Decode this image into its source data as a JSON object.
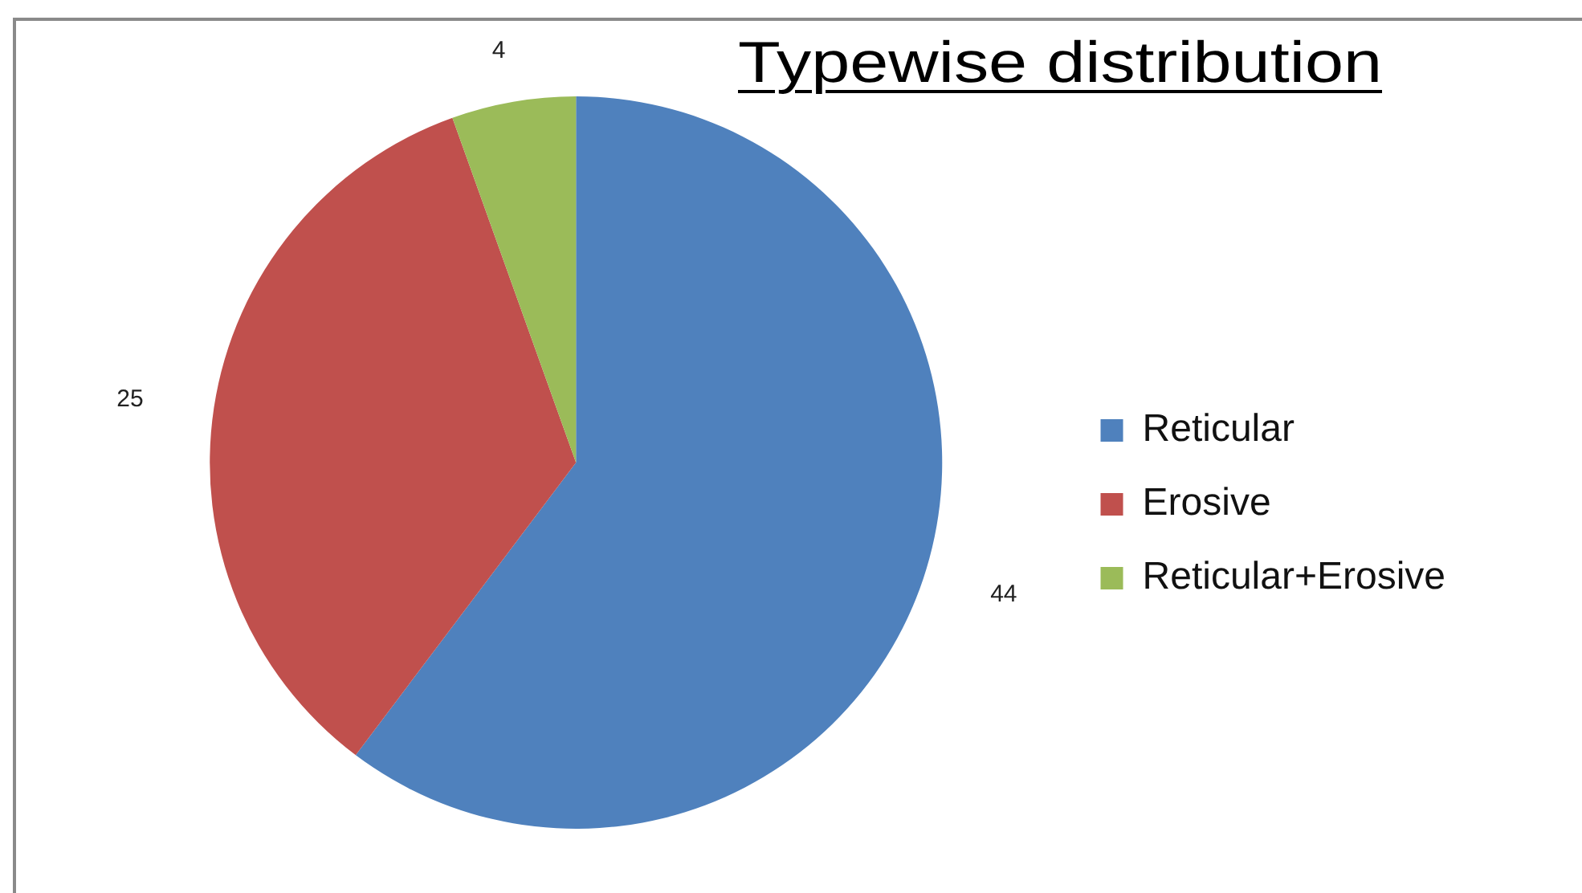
{
  "chart_data": {
    "type": "pie",
    "title": "Typewise distribution",
    "categories": [
      "Reticular",
      "Erosive",
      "Reticular+Erosive"
    ],
    "values": [
      44,
      25,
      4
    ],
    "colors": [
      "#4f81bd",
      "#c0504d",
      "#9bbb59"
    ],
    "data_labels": true,
    "legend": "right"
  }
}
